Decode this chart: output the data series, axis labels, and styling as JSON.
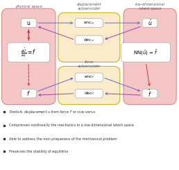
{
  "fig_width": 2.58,
  "fig_height": 2.45,
  "dpi": 100,
  "bg_color": "#ffffff",
  "pink_bg": "#f5c6c6",
  "yellow_bg": "#faecc8",
  "box_color": "#ffffff",
  "title_physical": "physical space",
  "title_disp": "displacement\nautoencoder",
  "title_latent": "low-dimensional\nlatent space",
  "title_force": "force\nautoencoder",
  "label_u": "u",
  "label_u_hat": "$\\hat{u}$",
  "label_f": "$f$",
  "label_f_hat": "$\\hat{f}$",
  "label_enc_u": "enc$_u$",
  "label_dec_u": "dec$_u$",
  "label_enc_f": "enc$_f$",
  "label_dec_f": "dec$_f$",
  "label_partial": "$\\frac{\\partial\\hat{U}}{\\partial u} = f$",
  "label_nn": "NN($\\hat{u}$) = $\\hat{f}$",
  "bullet1": "Predicts displacement $u$ from force $F$ or vice-versa",
  "bullet2": "Compresses nonlinearly the mechanics in a low-dimensional latent space",
  "bullet3": "Able to address the non-uniqueness of the mechanical problem",
  "bullet4": "Preserves the stability of equilibria",
  "arrow_blue": "#6666cc",
  "arrow_red": "#cc3333",
  "arrow_purple": "#9944aa"
}
